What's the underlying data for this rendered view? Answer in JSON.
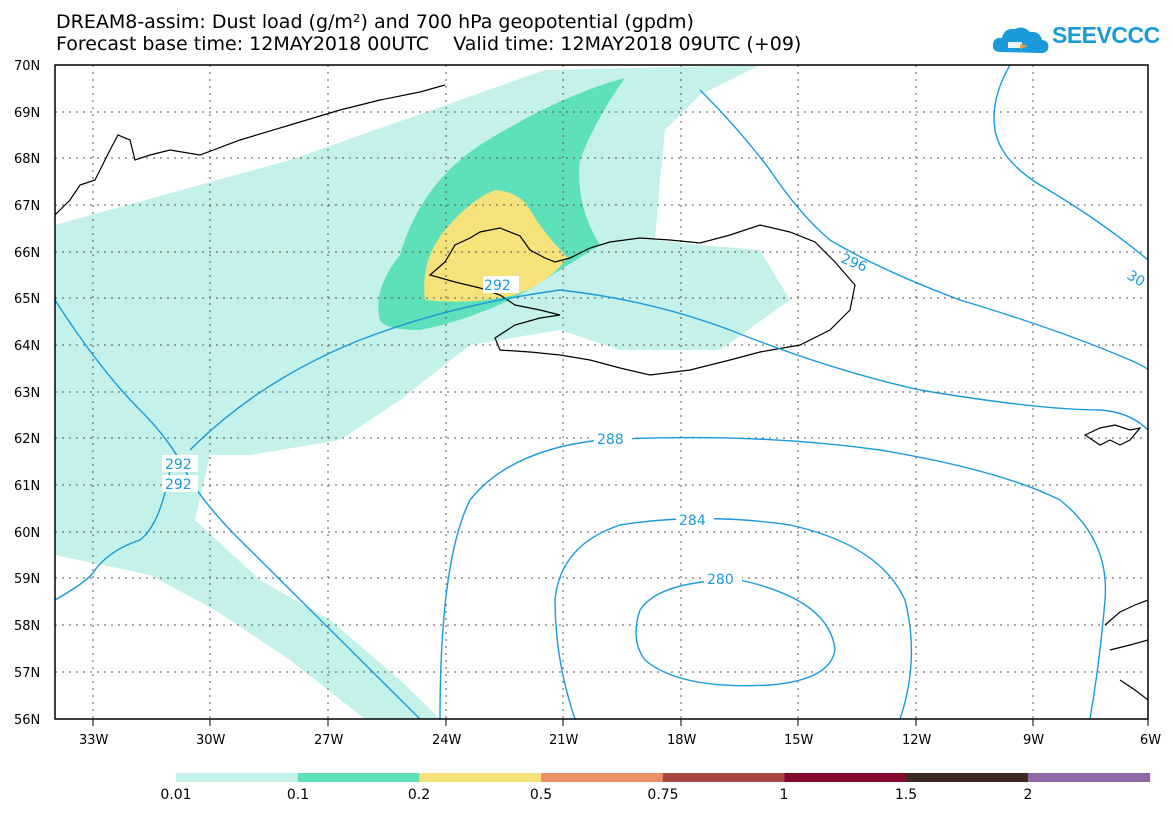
{
  "title": {
    "line1": "DREAM8-assim: Dust load (g/m²) and 700 hPa geopotential (gpdm)",
    "line2": "Forecast base time: 12MAY2018 00UTC    Valid time: 12MAY2018 09UTC (+09)"
  },
  "logo": {
    "text": "SEEVCCC",
    "icon": "cloud-icon"
  },
  "map": {
    "lat_labels": [
      "70N",
      "69N",
      "68N",
      "67N",
      "66N",
      "65N",
      "64N",
      "63N",
      "62N",
      "61N",
      "60N",
      "59N",
      "58N",
      "57N",
      "56N"
    ],
    "lon_labels": [
      "33W",
      "30W",
      "27W",
      "24W",
      "21W",
      "18W",
      "15W",
      "12W",
      "9W",
      "6W"
    ],
    "contour_labels": [
      "292",
      "292",
      "292",
      "296",
      "30",
      "288",
      "284",
      "280"
    ],
    "colors": {
      "contour": "#1a9ad9",
      "dust_low": "#c4f2ea",
      "dust_mid": "#5ee0bb",
      "dust_high": "#f5e27a"
    }
  },
  "legend": {
    "labels": [
      "0.01",
      "0.1",
      "0.2",
      "0.5",
      "0.75",
      "1",
      "1.5",
      "2"
    ],
    "colors": [
      "#c4f2ea",
      "#5ee0bb",
      "#f5e27a",
      "#ef8f6a",
      "#a84646",
      "#820a2c",
      "#3b2a20",
      "#9168a6"
    ]
  }
}
